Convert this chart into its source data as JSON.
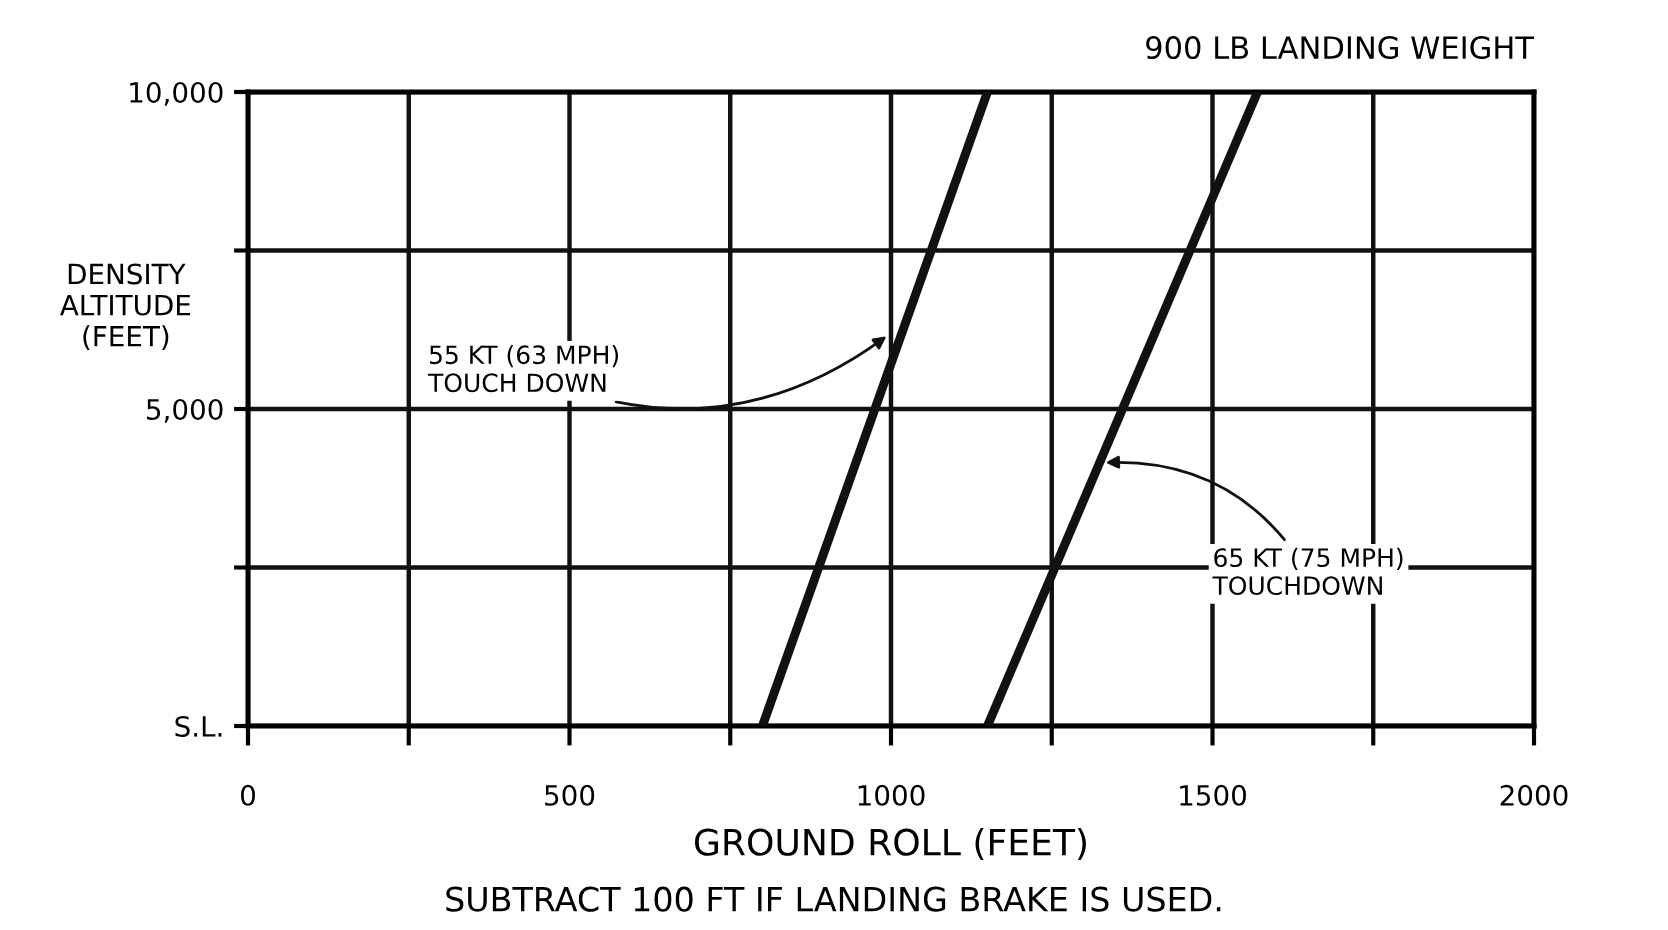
{
  "chart_data": {
    "type": "line",
    "title": "900 LB LANDING WEIGHT",
    "xlabel": "GROUND ROLL (FEET)",
    "ylabel": "DENSITY\nALTITUDE\n(FEET)",
    "series": [
      {
        "color": "#111111",
        "x": [
          800,
          1150
        ],
        "values": [
          0,
          10000
        ]
      },
      {
        "color": "#111111",
        "x": [
          1150,
          1570
        ],
        "values": [
          0,
          10000
        ]
      }
    ],
    "xlim": [
      0,
      2000
    ],
    "ylim": [
      0,
      10000
    ],
    "xticks": [
      0,
      {
        "value": 250,
        "label": null
      },
      500,
      {
        "value": 750,
        "label": null
      },
      1000,
      {
        "value": 1250,
        "label": null
      },
      1500,
      {
        "value": 1750,
        "label": null
      },
      2000
    ],
    "yticks": [
      {
        "value": 0,
        "label": "S.L."
      },
      {
        "value": 2500,
        "label": null
      },
      {
        "value": 5000,
        "label": "5,000"
      },
      {
        "value": 7500,
        "label": null
      },
      {
        "value": 10000,
        "label": "10,000"
      }
    ],
    "grid": true,
    "line_style": "solid",
    "marker": "none",
    "annotations": [
      {
        "text": "55 KT (63 MPH)\nTOUCH DOWN",
        "x": 1000,
        "y": 6200
      },
      {
        "text": "65 KT (75 MPH)\nTOUCHDOWN",
        "x": 1325,
        "y": 4150
      },
      "SUBTRACT 100 FT IF LANDING BRAKE IS USED."
    ]
  }
}
